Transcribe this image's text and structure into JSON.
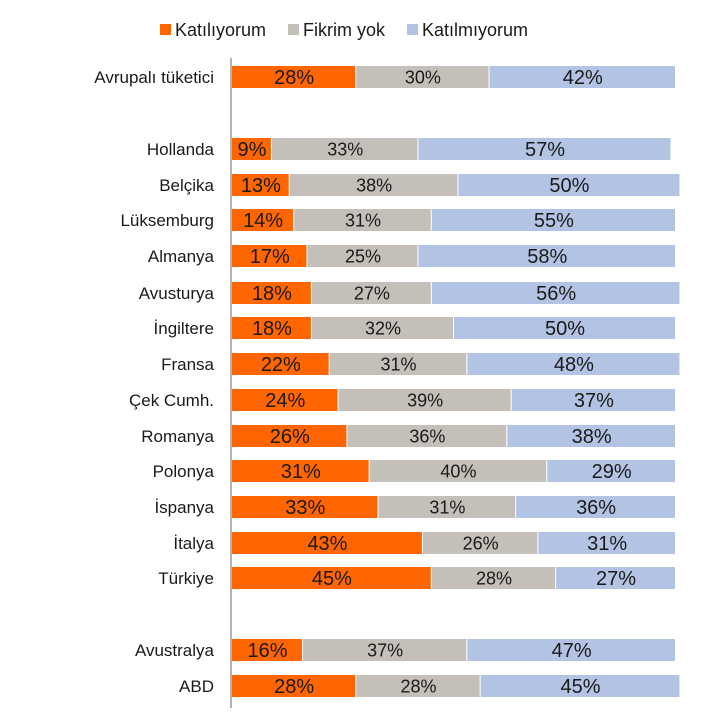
{
  "chart_data": {
    "type": "bar",
    "orientation": "horizontal",
    "stacked": true,
    "normalized_percent": true,
    "legend_position": "top",
    "grid": false,
    "xlim": [
      0,
      100
    ],
    "categories": [
      "Avrupalı tüketici",
      "Hollanda",
      "Belçika",
      "Lüksemburg",
      "Almanya",
      "Avusturya",
      "İngiltere",
      "Fransa",
      "Çek Cumh.",
      "Romanya",
      "Polonya",
      "İspanya",
      "İtalya",
      "Türkiye",
      "Avustralya",
      "ABD"
    ],
    "series": [
      {
        "name": "Katılıyorum",
        "color": "#ff6600",
        "values": [
          28,
          9,
          13,
          14,
          17,
          18,
          18,
          22,
          24,
          26,
          31,
          33,
          43,
          45,
          16,
          28
        ]
      },
      {
        "name": "Fikrim yok",
        "color": "#c4bfb9",
        "values": [
          30,
          33,
          38,
          31,
          25,
          27,
          32,
          31,
          39,
          36,
          40,
          31,
          26,
          28,
          37,
          28
        ]
      },
      {
        "name": "Katılmıyorum",
        "color": "#b3c3e3",
        "values": [
          42,
          57,
          50,
          55,
          58,
          56,
          50,
          48,
          37,
          38,
          29,
          36,
          31,
          27,
          47,
          45
        ]
      }
    ],
    "data_labels": [
      [
        "28%",
        "30%",
        "42%"
      ],
      [
        "9%",
        "33%",
        "57%"
      ],
      [
        "13%",
        "38%",
        "50%"
      ],
      [
        "14%",
        "31%",
        "55%"
      ],
      [
        "17%",
        "25%",
        "58%"
      ],
      [
        "18%",
        "27%",
        "56%"
      ],
      [
        "18%",
        "32%",
        "50%"
      ],
      [
        "22%",
        "31%",
        "48%"
      ],
      [
        "24%",
        "39%",
        "37%"
      ],
      [
        "26%",
        "36%",
        "38%"
      ],
      [
        "31%",
        "40%",
        "29%"
      ],
      [
        "33%",
        "31%",
        "36%"
      ],
      [
        "43%",
        "26%",
        "31%"
      ],
      [
        "45%",
        "28%",
        "27%"
      ],
      [
        "16%",
        "37%",
        "47%"
      ],
      [
        "28%",
        "28%",
        "45%"
      ]
    ]
  }
}
